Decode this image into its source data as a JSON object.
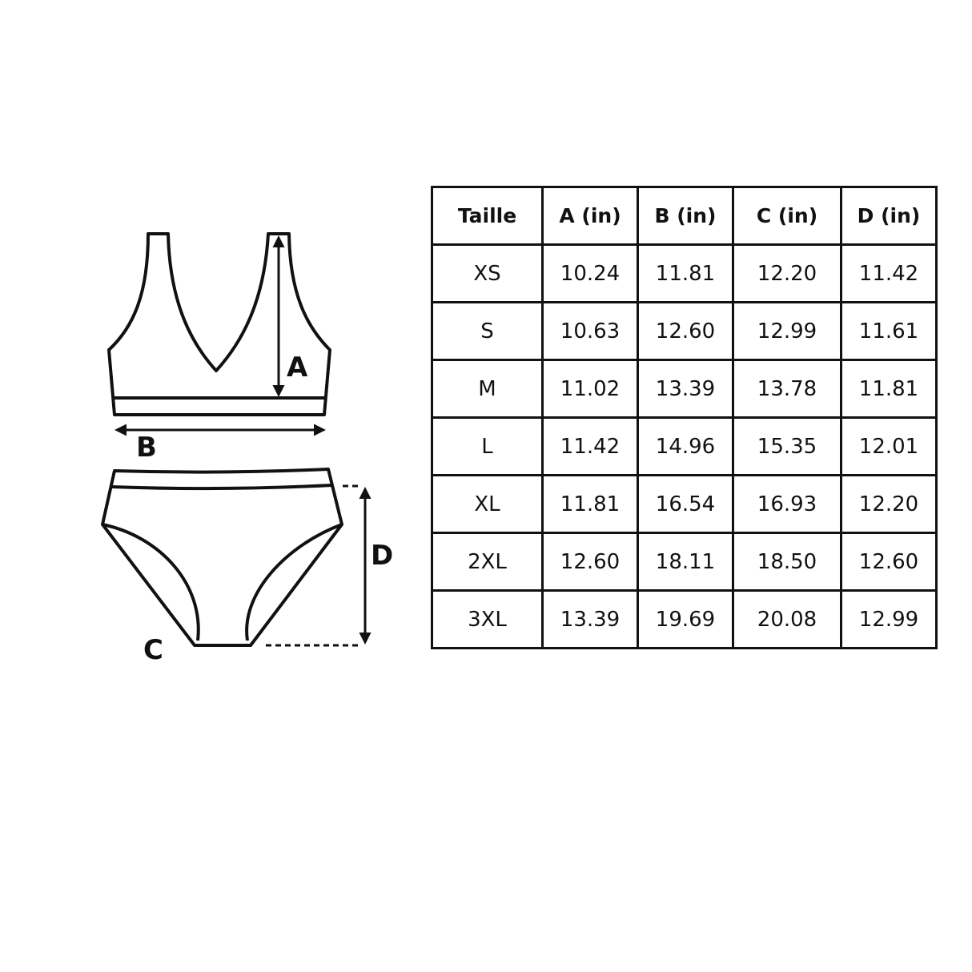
{
  "diagram": {
    "labels": {
      "a": "A",
      "b": "B",
      "c": "C",
      "d": "D"
    },
    "line_color": "#111111"
  },
  "table": {
    "headers": [
      "Taille",
      "A (in)",
      "B (in)",
      "C (in)",
      "D (in)"
    ],
    "rows": [
      [
        "XS",
        "10.24",
        "11.81",
        "12.20",
        "11.42"
      ],
      [
        "S",
        "10.63",
        "12.60",
        "12.99",
        "11.61"
      ],
      [
        "M",
        "11.02",
        "13.39",
        "13.78",
        "11.81"
      ],
      [
        "L",
        "11.42",
        "14.96",
        "15.35",
        "12.01"
      ],
      [
        "XL",
        "11.81",
        "16.54",
        "16.93",
        "12.20"
      ],
      [
        "2XL",
        "12.60",
        "18.11",
        "18.50",
        "12.60"
      ],
      [
        "3XL",
        "13.39",
        "19.69",
        "20.08",
        "12.99"
      ]
    ]
  }
}
